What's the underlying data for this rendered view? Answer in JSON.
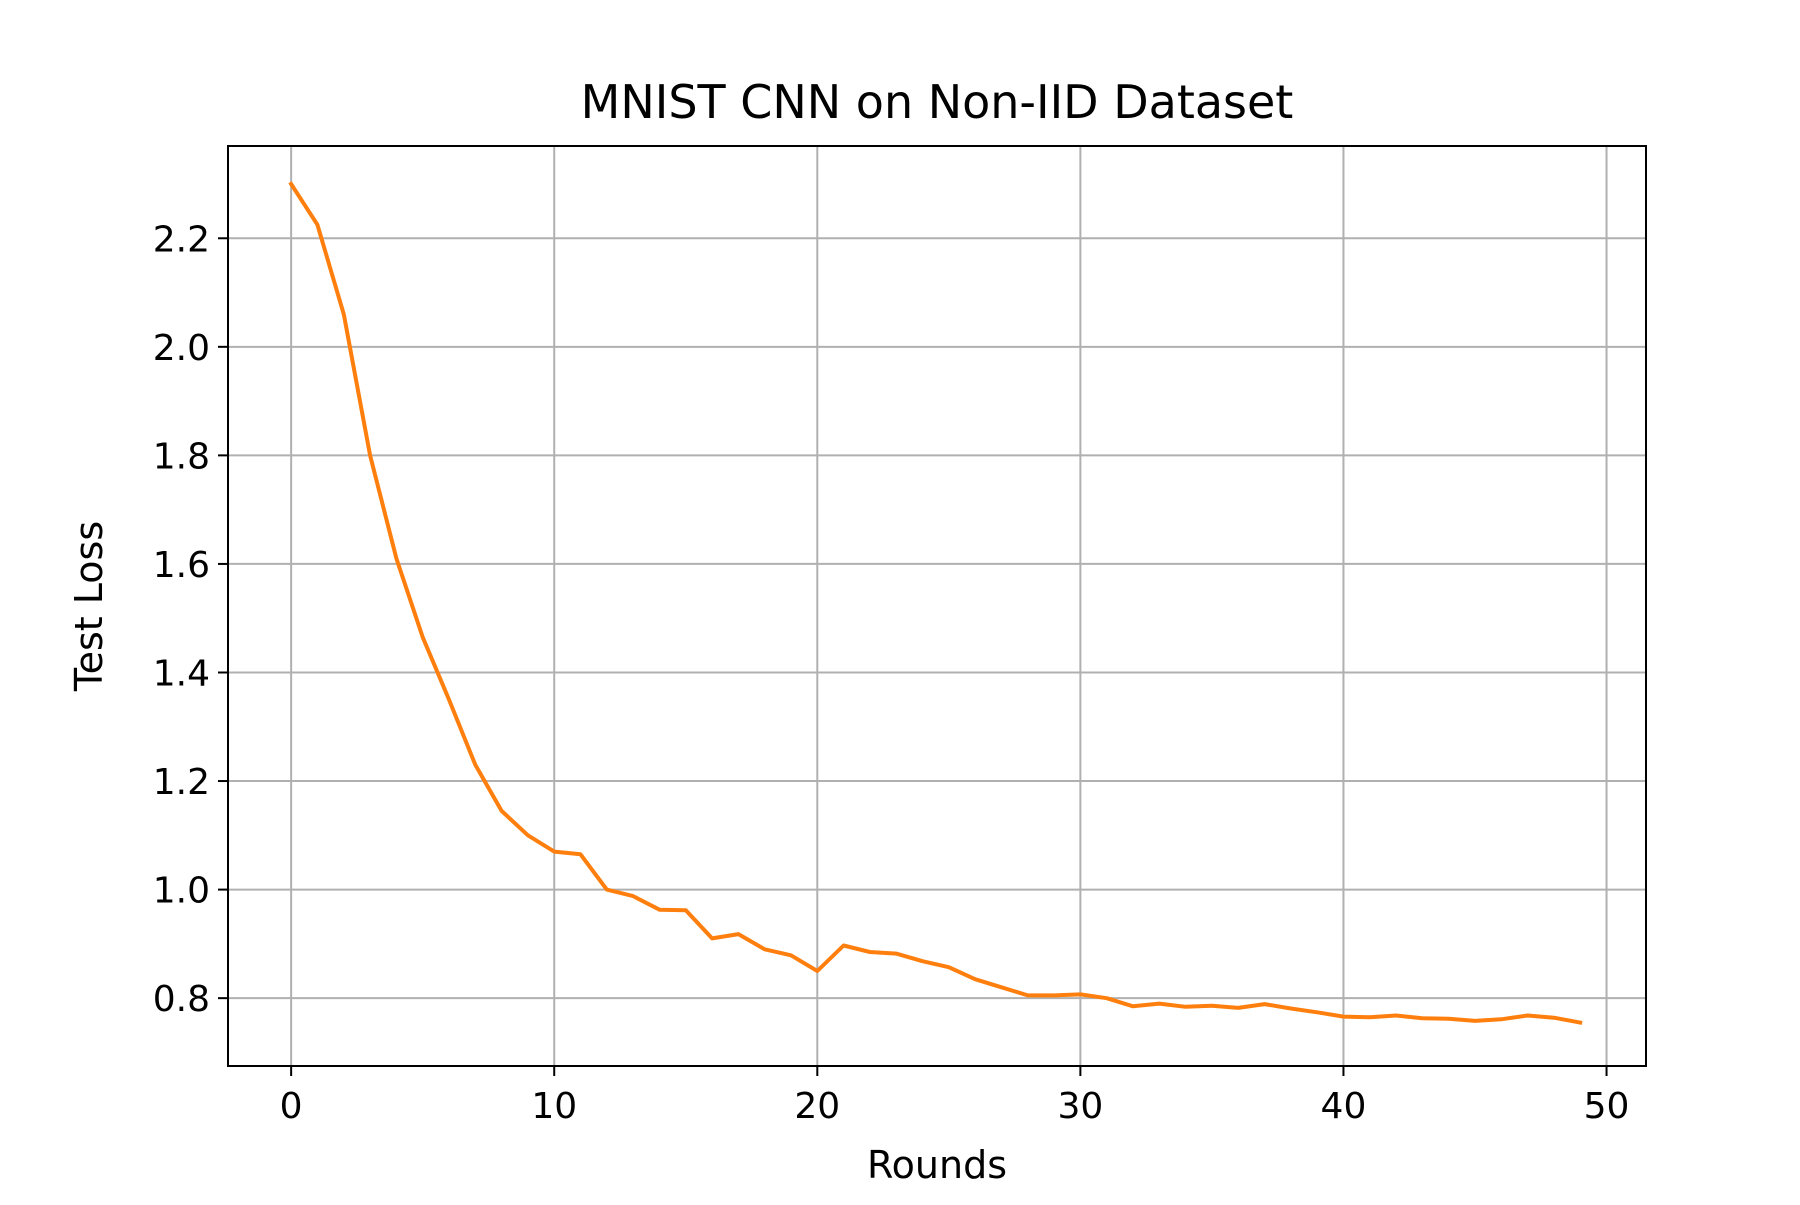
{
  "chart_data": {
    "type": "line",
    "title": "MNIST CNN on Non-IID Dataset",
    "xlabel": "Rounds",
    "ylabel": "Test Loss",
    "xlim": [
      -2.4,
      51.5
    ],
    "ylim": [
      0.675,
      2.37
    ],
    "xticks": [
      0,
      10,
      20,
      30,
      40,
      50
    ],
    "xtick_labels": [
      "0",
      "10",
      "20",
      "30",
      "40",
      "50"
    ],
    "yticks": [
      0.8,
      1.0,
      1.2,
      1.4,
      1.6,
      1.8,
      2.0,
      2.2
    ],
    "ytick_labels": [
      "0.8",
      "1.0",
      "1.2",
      "1.4",
      "1.6",
      "1.8",
      "2.0",
      "2.2"
    ],
    "grid": true,
    "line_color": "#ff7f0e",
    "grid_color": "#b0b0b0",
    "series": [
      {
        "x": [
          0,
          1,
          2,
          3,
          4,
          5,
          6,
          7,
          8,
          9,
          10,
          11,
          12,
          13,
          14,
          15,
          16,
          17,
          18,
          19,
          20,
          21,
          22,
          23,
          24,
          25,
          26,
          27,
          28,
          29,
          30,
          31,
          32,
          33,
          34,
          35,
          36,
          37,
          38,
          39,
          40,
          41,
          42,
          43,
          44,
          45,
          46,
          47,
          48,
          49
        ],
        "values": [
          2.3,
          2.225,
          2.06,
          1.8,
          1.61,
          1.465,
          1.35,
          1.23,
          1.145,
          1.1,
          1.07,
          1.065,
          1.0,
          0.988,
          0.963,
          0.962,
          0.91,
          0.918,
          0.89,
          0.879,
          0.85,
          0.897,
          0.885,
          0.882,
          0.868,
          0.857,
          0.835,
          0.82,
          0.805,
          0.805,
          0.807,
          0.8,
          0.785,
          0.79,
          0.784,
          0.786,
          0.782,
          0.789,
          0.781,
          0.774,
          0.766,
          0.765,
          0.768,
          0.763,
          0.762,
          0.758,
          0.761,
          0.768,
          0.764,
          0.755
        ]
      }
    ]
  }
}
